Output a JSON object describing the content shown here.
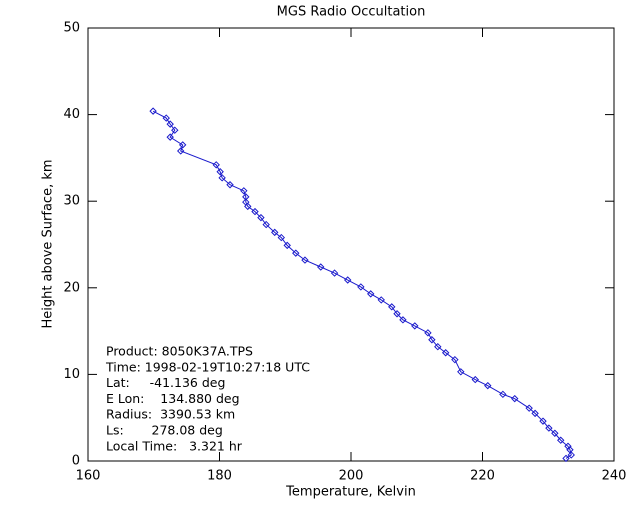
{
  "chart_data": {
    "type": "line",
    "title": "MGS Radio Occultation",
    "x_label": "Temperature, Kelvin",
    "y_label": "Height above Surface, km",
    "xlim": [
      160,
      240
    ],
    "xticks": [
      160,
      180,
      200,
      220,
      240
    ],
    "ylim": [
      0,
      50
    ],
    "yticks": [
      0,
      10,
      20,
      30,
      40,
      50
    ],
    "series": [
      {
        "color": "#1a1acc",
        "x": [
          169.9,
          171.9,
          172.5,
          173.2,
          172.5,
          174.4,
          174.1,
          179.5,
          180.1,
          180.4,
          181.6,
          183.7,
          184.0,
          184.0,
          184.3,
          185.4,
          186.3,
          187.1,
          188.4,
          189.4,
          190.3,
          191.6,
          193.0,
          195.4,
          197.5,
          199.5,
          201.5,
          203.0,
          204.6,
          206.2,
          207.0,
          207.9,
          209.7,
          211.7,
          212.3,
          213.2,
          214.4,
          215.8,
          216.7,
          218.9,
          220.8,
          223.1,
          224.9,
          227.1,
          228.0,
          229.2,
          230.1,
          231.0,
          231.9,
          233.0,
          233.3,
          233.5,
          232.7
        ],
        "values": [
          40.4,
          39.6,
          38.9,
          38.2,
          37.4,
          36.5,
          35.8,
          34.2,
          33.4,
          32.7,
          31.9,
          31.2,
          30.5,
          29.9,
          29.4,
          28.8,
          28.1,
          27.3,
          26.4,
          25.8,
          24.9,
          24.0,
          23.2,
          22.4,
          21.7,
          20.9,
          20.1,
          19.3,
          18.6,
          17.8,
          17.0,
          16.3,
          15.6,
          14.8,
          14.0,
          13.2,
          12.5,
          11.7,
          10.3,
          9.4,
          8.7,
          7.7,
          7.2,
          6.1,
          5.5,
          4.6,
          3.8,
          3.2,
          2.4,
          1.7,
          1.3,
          0.7,
          0.3
        ]
      }
    ],
    "annotations": [
      "Product: 8050K37A.TPS",
      "Time: 1998-02-19T10:27:18 UTC",
      "Lat:     -41.136 deg",
      "E Lon:    134.880 deg",
      "Radius:  3390.53 km",
      "Ls:       278.08 deg",
      "Local Time:   3.321 hr"
    ]
  }
}
